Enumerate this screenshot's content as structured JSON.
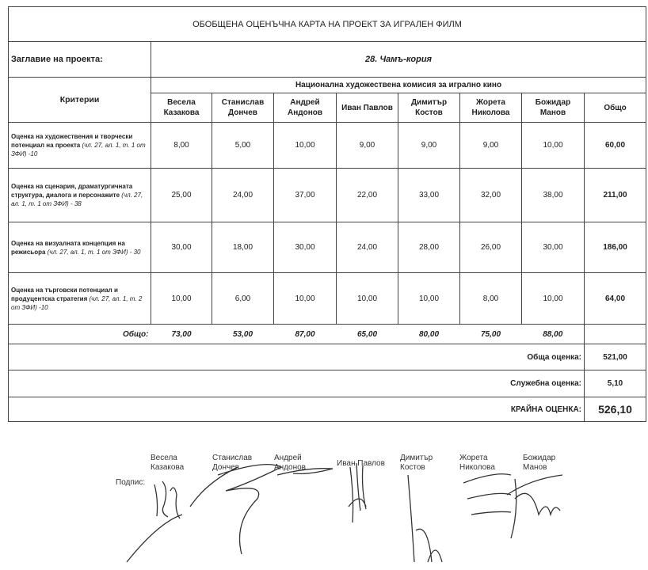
{
  "title": "ОБОБЩЕНА ОЦЕНЪЧНА КАРТА НА ПРОЕКТ ЗА ИГРАЛЕН ФИЛМ",
  "project_label": "Заглавие на проекта:",
  "project_name": "28. Чамъ-кория",
  "criteria_header": "Критерии",
  "commission": "Национална художествена комисия за игрално кино",
  "judges": [
    "Весела Казакова",
    "Станислав Дончев",
    "Андрей Андонов",
    "Иван Павлов",
    "Димитър Костов",
    "Жорета Николова",
    "Божидар Манов"
  ],
  "total_header": "Общо",
  "rows": [
    {
      "criterion": "Оценка на художествения и творчески потенциал на проекта",
      "ref": "(чл. 27, ал. 1, т. 1 от ЗФИ) -10",
      "scores": [
        "8,00",
        "5,00",
        "10,00",
        "9,00",
        "9,00",
        "9,00",
        "10,00"
      ],
      "total": "60,00"
    },
    {
      "criterion": "Оценка на сценария, драматургичната структура, диалога и персонажите",
      "ref": "(чл. 27, ал. 1, т. 1 от ЗФИ) - 38",
      "scores": [
        "25,00",
        "24,00",
        "37,00",
        "22,00",
        "33,00",
        "32,00",
        "38,00"
      ],
      "total": "211,00"
    },
    {
      "criterion": "Оценка на визуалната концепция на режисьора",
      "ref": "(чл. 27, ал. 1, т. 1 от ЗФИ) - 30",
      "scores": [
        "30,00",
        "18,00",
        "30,00",
        "24,00",
        "28,00",
        "26,00",
        "30,00"
      ],
      "total": "186,00"
    },
    {
      "criterion": "Оценка на търговски потенциал и продуцентска стратегия",
      "ref": "(чл. 27, ал. 1, т. 2 от ЗФИ) -10",
      "scores": [
        "10,00",
        "6,00",
        "10,00",
        "10,00",
        "10,00",
        "8,00",
        "10,00"
      ],
      "total": "64,00"
    }
  ],
  "totals_label": "Общо:",
  "judge_totals": [
    "73,00",
    "53,00",
    "87,00",
    "65,00",
    "80,00",
    "75,00",
    "88,00"
  ],
  "overall_label": "Обща оценка:",
  "overall_value": "521,00",
  "service_label": "Служебна оценка:",
  "service_value": "5,10",
  "final_label": "КРАЙНА ОЦЕНКА:",
  "final_value": "526,10",
  "signature_label": "Подпис:",
  "signatories": [
    "Весела\nКазакова",
    "Станислав\nДончев",
    "Андрей\nАндонов",
    "Иван Павлов",
    "Димитър\nКостов",
    "Жорета\nНиколова",
    "Божидар\nМанов"
  ]
}
